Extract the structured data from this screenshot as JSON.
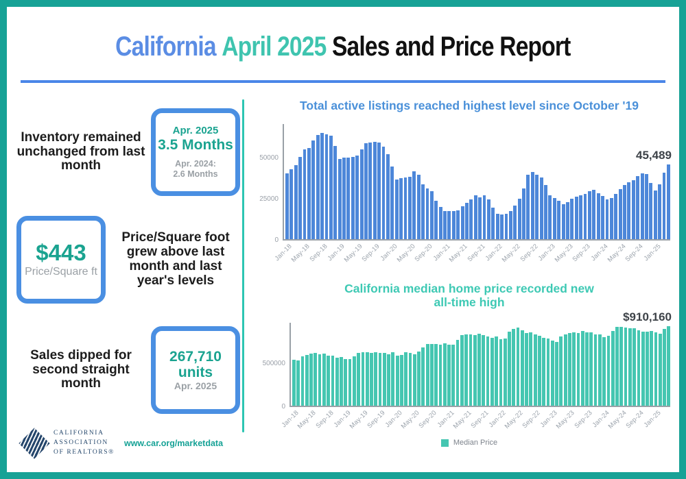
{
  "frame": {
    "border_color": "#17a296"
  },
  "header": {
    "title_part1": "California",
    "title_part2": "April 2025",
    "title_part3": "Sales and Price Report",
    "accent_blue": "#5b8de4",
    "accent_teal": "#3fc4af",
    "divider_color": "#4a86e8"
  },
  "left_panel": {
    "blocks": [
      {
        "text": "Inventory remained unchanged from last month",
        "box": {
          "line1": "Apr. 2025",
          "line2": "3.5 Months",
          "line3": "Apr. 2024:",
          "line4": "2.6 Months"
        }
      },
      {
        "text": "Price/Square foot grew above last month and last year's levels",
        "box": {
          "line1": "$443",
          "line2": "Price/Square ft"
        }
      },
      {
        "text": "Sales dipped for second straight month",
        "box": {
          "line1": "267,710",
          "line2": "units",
          "line3": "Apr. 2025"
        }
      }
    ]
  },
  "footer": {
    "logo_lines": [
      "CALIFORNIA",
      "ASSOCIATION",
      "OF REALTORS®"
    ],
    "website": "www.car.org/marketdata"
  },
  "chart_data": [
    {
      "type": "bar",
      "title": "Total active listings reached highest level since October '19",
      "title_color": "#4a90d9",
      "bar_color": "#4d87d9",
      "annotation": "45,489",
      "annotation_target": "Apr-25",
      "xlabel": "",
      "ylabel": "",
      "ylim": [
        0,
        70000
      ],
      "grid": false,
      "y_ticks": [
        0,
        25000,
        50000
      ],
      "y_tick_labels": [
        "0",
        "25000",
        "50000"
      ],
      "x_frequency": "monthly",
      "x_range": {
        "start": "Jan-18",
        "end": "Apr-25",
        "count": 88
      },
      "x_tick_labels": [
        "Jan-18",
        "May-18",
        "Sep-18",
        "Jan-19",
        "May-19",
        "Sep-19",
        "Jan-20",
        "May-20",
        "Sep-20",
        "Jan-21",
        "May-21",
        "Sep-21",
        "Jan-22",
        "May-22",
        "Sep-22",
        "Jan-23",
        "May-23",
        "Sep-23",
        "Jan-24",
        "May-24",
        "Sep-24",
        "Jan-25"
      ],
      "values": [
        40000,
        42300,
        44800,
        49800,
        54700,
        55600,
        59800,
        63400,
        64400,
        63800,
        63100,
        56800,
        48700,
        49400,
        49700,
        50100,
        50800,
        54500,
        58300,
        58700,
        59100,
        58900,
        56300,
        51500,
        44300,
        36300,
        37000,
        37500,
        38000,
        41100,
        39200,
        33400,
        31000,
        29000,
        23500,
        19400,
        17100,
        16900,
        17200,
        17500,
        19800,
        22000,
        24200,
        26600,
        25600,
        26600,
        24000,
        19000,
        15600,
        15000,
        15600,
        16900,
        20400,
        24500,
        31000,
        39100,
        40700,
        39100,
        37700,
        32800,
        26700,
        24900,
        23300,
        21200,
        22600,
        24500,
        25900,
        26700,
        27700,
        29000,
        30000,
        28100,
        26300,
        24200,
        24800,
        27500,
        30500,
        33000,
        34500,
        36000,
        38500,
        40000,
        39400,
        34100,
        29500,
        33200,
        40500,
        45489
      ]
    },
    {
      "type": "bar",
      "title": "California median home price recorded new all-time high",
      "title_lines": [
        "California median home price recorded new",
        "all-time high"
      ],
      "title_color": "#3ec9b4",
      "bar_color": "#45c6b1",
      "annotation": "$910,160",
      "annotation_target": "Apr-25",
      "xlabel": "",
      "ylabel": "",
      "ylim": [
        0,
        950000
      ],
      "grid": false,
      "y_ticks": [
        0,
        500000
      ],
      "y_tick_labels": [
        "0",
        "500000"
      ],
      "legend": [
        {
          "label": "Median Price",
          "color": "#45c6b1"
        }
      ],
      "legend_position": "bottom",
      "x_frequency": "monthly",
      "x_range": {
        "start": "Jan-18",
        "end": "Apr-25",
        "count": 88
      },
      "x_tick_labels": [
        "Jan-18",
        "May-18",
        "Sep-18",
        "Jan-19",
        "May-19",
        "Sep-19",
        "Jan-20",
        "May-20",
        "Sep-20",
        "Jan-21",
        "May-21",
        "Sep-21",
        "Jan-22",
        "May-22",
        "Sep-22",
        "Jan-23",
        "May-23",
        "Sep-23",
        "Jan-24",
        "May-24",
        "Sep-24",
        "Jan-25"
      ],
      "values": [
        527800,
        522440,
        564830,
        584460,
        600860,
        602760,
        591460,
        596410,
        578850,
        572000,
        554760,
        557600,
        538690,
        534140,
        565880,
        602920,
        611190,
        611420,
        607990,
        617410,
        605680,
        605280,
        589770,
        615090,
        575160,
        579770,
        612440,
        606410,
        588070,
        626170,
        666320,
        706900,
        712430,
        711300,
        699000,
        717930,
        699000,
        699000,
        758990,
        813980,
        818260,
        819630,
        811170,
        827940,
        808890,
        798440,
        782480,
        796570,
        765580,
        771270,
        849080,
        884890,
        898980,
        863790,
        833910,
        839460,
        821680,
        801190,
        777500,
        774580,
        751330,
        735480,
        791490,
        815340,
        836110,
        838260,
        832340,
        859800,
        843340,
        840360,
        822200,
        819740,
        788940,
        806490,
        854490,
        904210,
        908040,
        900720,
        886560,
        888740,
        868150,
        852880,
        852650,
        861020,
        838850,
        829060,
        884350,
        910160
      ]
    }
  ]
}
